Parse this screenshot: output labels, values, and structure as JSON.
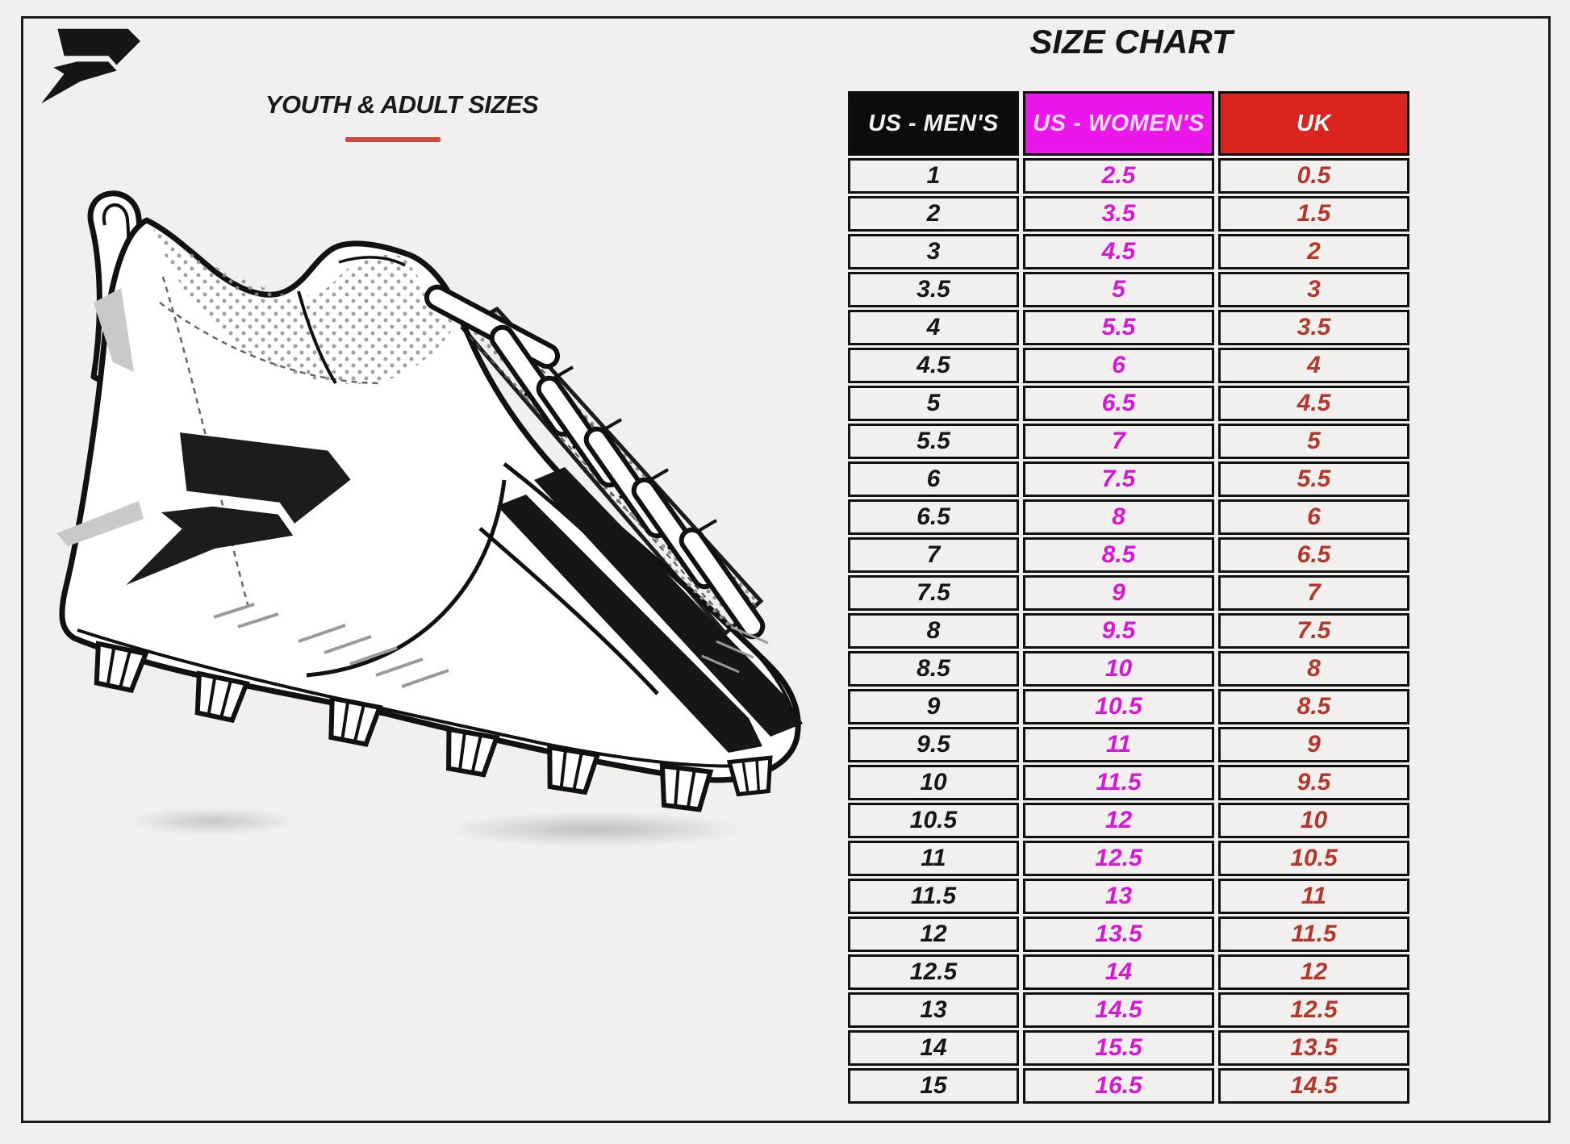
{
  "page": {
    "background_color": "#f1f0ee",
    "border_color": "#1b1b1b"
  },
  "brand": {
    "logo_icon": "phenom-p-logo",
    "logo_color": "#161616"
  },
  "left_panel": {
    "subtitle": "YOUTH & ADULT SIZES",
    "underline_color": "#cd4a42",
    "illustration": "football-cleat-line-art",
    "shadow": "two-soft-ellipses"
  },
  "size_chart": {
    "title": "SIZE CHART",
    "columns": [
      {
        "label": "US - MEN'S",
        "header_bg": "#0c0c0c",
        "header_text": "#f2f2f2",
        "value_color": "#161616"
      },
      {
        "label": "US - WOMEN'S",
        "header_bg": "#ea16ea",
        "header_text": "#ffd9fc",
        "value_color": "#d816d8"
      },
      {
        "label": "UK",
        "header_bg": "#da251f",
        "header_text": "#ffffff",
        "value_color": "#b5372c"
      }
    ]
  },
  "chart_data": {
    "type": "table",
    "title": "SIZE CHART",
    "columns": [
      "US - MEN'S",
      "US - WOMEN'S",
      "UK"
    ],
    "rows": [
      [
        "1",
        "2.5",
        "0.5"
      ],
      [
        "2",
        "3.5",
        "1.5"
      ],
      [
        "3",
        "4.5",
        "2"
      ],
      [
        "3.5",
        "5",
        "3"
      ],
      [
        "4",
        "5.5",
        "3.5"
      ],
      [
        "4.5",
        "6",
        "4"
      ],
      [
        "5",
        "6.5",
        "4.5"
      ],
      [
        "5.5",
        "7",
        "5"
      ],
      [
        "6",
        "7.5",
        "5.5"
      ],
      [
        "6.5",
        "8",
        "6"
      ],
      [
        "7",
        "8.5",
        "6.5"
      ],
      [
        "7.5",
        "9",
        "7"
      ],
      [
        "8",
        "9.5",
        "7.5"
      ],
      [
        "8.5",
        "10",
        "8"
      ],
      [
        "9",
        "10.5",
        "8.5"
      ],
      [
        "9.5",
        "11",
        "9"
      ],
      [
        "10",
        "11.5",
        "9.5"
      ],
      [
        "10.5",
        "12",
        "10"
      ],
      [
        "11",
        "12.5",
        "10.5"
      ],
      [
        "11.5",
        "13",
        "11"
      ],
      [
        "12",
        "13.5",
        "11.5"
      ],
      [
        "12.5",
        "14",
        "12"
      ],
      [
        "13",
        "14.5",
        "12.5"
      ],
      [
        "14",
        "15.5",
        "13.5"
      ],
      [
        "15",
        "16.5",
        "14.5"
      ]
    ]
  }
}
